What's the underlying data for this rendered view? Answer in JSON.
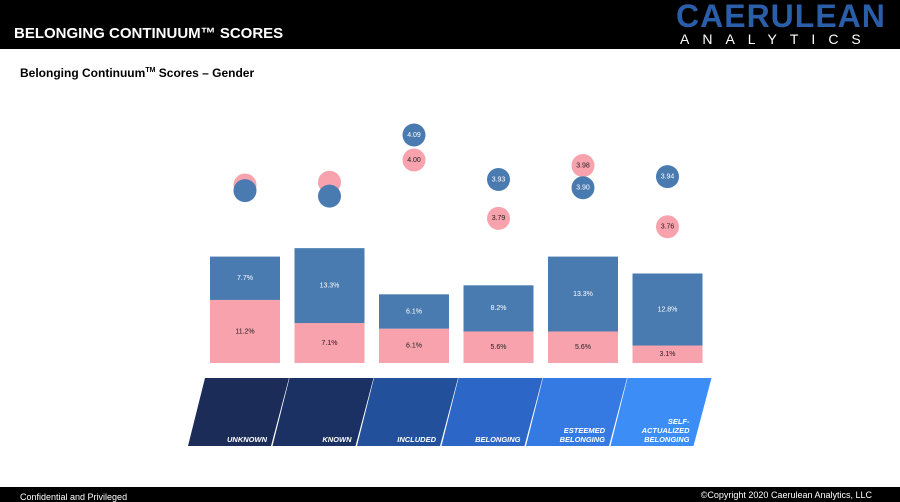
{
  "header": {
    "title": "BELONGING CONTINUUM™ SCORES",
    "logo_name": "CAERULEAN",
    "logo_tagline": "ANALYTICS"
  },
  "chart_data": {
    "type": "bar",
    "title": "Belonging Continuum",
    "title_superscript": "TM",
    "title_suffix": "Scores – Gender",
    "categories": [
      "UNKNOWN",
      "KNOWN",
      "INCLUDED",
      "BELONGING",
      "ESTEEMED BELONGING",
      "SELF-ACTUALIZED BELONGING"
    ],
    "band_colors": [
      "#1b2c58",
      "#1c3163",
      "#22509a",
      "#2c66c6",
      "#357ae2",
      "#3c8ef6"
    ],
    "series": [
      {
        "color": "#f7a2ac",
        "values": [
          11.2,
          7.1,
          6.1,
          5.6,
          5.6,
          3.1
        ],
        "value_labels": [
          "11.2%",
          "7.1%",
          "6.1%",
          "5.6%",
          "5.6%",
          "3.1%"
        ]
      },
      {
        "color": "#4a7bb0",
        "values": [
          7.7,
          13.3,
          6.1,
          8.2,
          13.3,
          12.8
        ],
        "value_labels": [
          "7.7%",
          "13.3%",
          "6.1%",
          "8.2%",
          "13.3%",
          "12.8%"
        ]
      }
    ],
    "scores": [
      {
        "color": "#f7a2ac",
        "values": [
          3.91,
          3.92,
          4.0,
          3.79,
          3.98,
          3.76
        ],
        "value_labels": [
          null,
          null,
          "4.00",
          "3.79",
          "3.98",
          "3.76"
        ]
      },
      {
        "color": "#4a7bb0",
        "values": [
          3.89,
          3.87,
          4.09,
          3.93,
          3.9,
          3.94
        ],
        "value_labels": [
          null,
          null,
          "4.09",
          "3.93",
          "3.90",
          "3.94"
        ]
      }
    ]
  },
  "footer": {
    "left": "Confidential and Privileged",
    "right": "©Copyright 2020 Caerulean Analytics, LLC"
  }
}
